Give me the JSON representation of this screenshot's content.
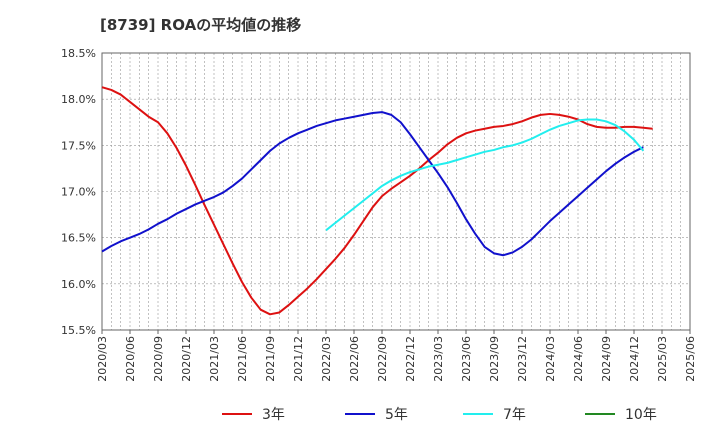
{
  "chart_data": {
    "type": "line",
    "title": "[8739]  ROAの平均値の推移",
    "xlabel": "",
    "ylabel": "",
    "ylim": [
      15.5,
      18.5
    ],
    "yticks": [
      "15.5%",
      "16.0%",
      "16.5%",
      "17.0%",
      "17.5%",
      "18.0%",
      "18.5%"
    ],
    "xticks": [
      "2020/03",
      "2020/06",
      "2020/09",
      "2020/12",
      "2021/03",
      "2021/06",
      "2021/09",
      "2021/12",
      "2022/03",
      "2022/06",
      "2022/09",
      "2022/12",
      "2023/03",
      "2023/06",
      "2023/09",
      "2023/12",
      "2024/03",
      "2024/06",
      "2024/09",
      "2024/12",
      "2025/03",
      "2025/06"
    ],
    "grid": true,
    "legend_position": "bottom",
    "series": [
      {
        "name": "3年",
        "color": "#dd1111",
        "start": "2020/03",
        "values": [
          18.13,
          18.1,
          18.05,
          17.97,
          17.89,
          17.81,
          17.75,
          17.63,
          17.47,
          17.28,
          17.07,
          16.85,
          16.64,
          16.43,
          16.22,
          16.02,
          15.85,
          15.72,
          15.67,
          15.69,
          15.77,
          15.86,
          15.95,
          16.05,
          16.16,
          16.27,
          16.39,
          16.53,
          16.68,
          16.83,
          16.95,
          17.03,
          17.1,
          17.17,
          17.25,
          17.34,
          17.42,
          17.51,
          17.58,
          17.63,
          17.66,
          17.68,
          17.7,
          17.71,
          17.73,
          17.76,
          17.8,
          17.83,
          17.84,
          17.83,
          17.81,
          17.78,
          17.73,
          17.7,
          17.69,
          17.69,
          17.7,
          17.7,
          17.69,
          17.68
        ]
      },
      {
        "name": "5年",
        "color": "#1111cc",
        "start": "2020/03",
        "values": [
          16.35,
          16.41,
          16.46,
          16.5,
          16.54,
          16.59,
          16.65,
          16.7,
          16.76,
          16.81,
          16.86,
          16.9,
          16.94,
          16.99,
          17.06,
          17.14,
          17.24,
          17.34,
          17.44,
          17.52,
          17.58,
          17.63,
          17.67,
          17.71,
          17.74,
          17.77,
          17.79,
          17.81,
          17.83,
          17.85,
          17.86,
          17.83,
          17.75,
          17.62,
          17.48,
          17.34,
          17.2,
          17.05,
          16.88,
          16.7,
          16.54,
          16.4,
          16.33,
          16.31,
          16.34,
          16.4,
          16.48,
          16.58,
          16.68,
          16.77,
          16.86,
          16.95,
          17.04,
          17.13,
          17.22,
          17.3,
          17.37,
          17.43,
          17.48
        ]
      },
      {
        "name": "7年",
        "color": "#22eeee",
        "start": "2022/03",
        "values": [
          16.58,
          16.66,
          16.74,
          16.82,
          16.9,
          16.98,
          17.06,
          17.12,
          17.17,
          17.21,
          17.24,
          17.27,
          17.29,
          17.31,
          17.34,
          17.37,
          17.4,
          17.43,
          17.45,
          17.48,
          17.5,
          17.53,
          17.57,
          17.62,
          17.67,
          17.71,
          17.74,
          17.77,
          17.78,
          17.78,
          17.76,
          17.72,
          17.65,
          17.56,
          17.44
        ]
      },
      {
        "name": "10年",
        "color": "#228822",
        "start": "2022/03",
        "values": []
      }
    ]
  }
}
